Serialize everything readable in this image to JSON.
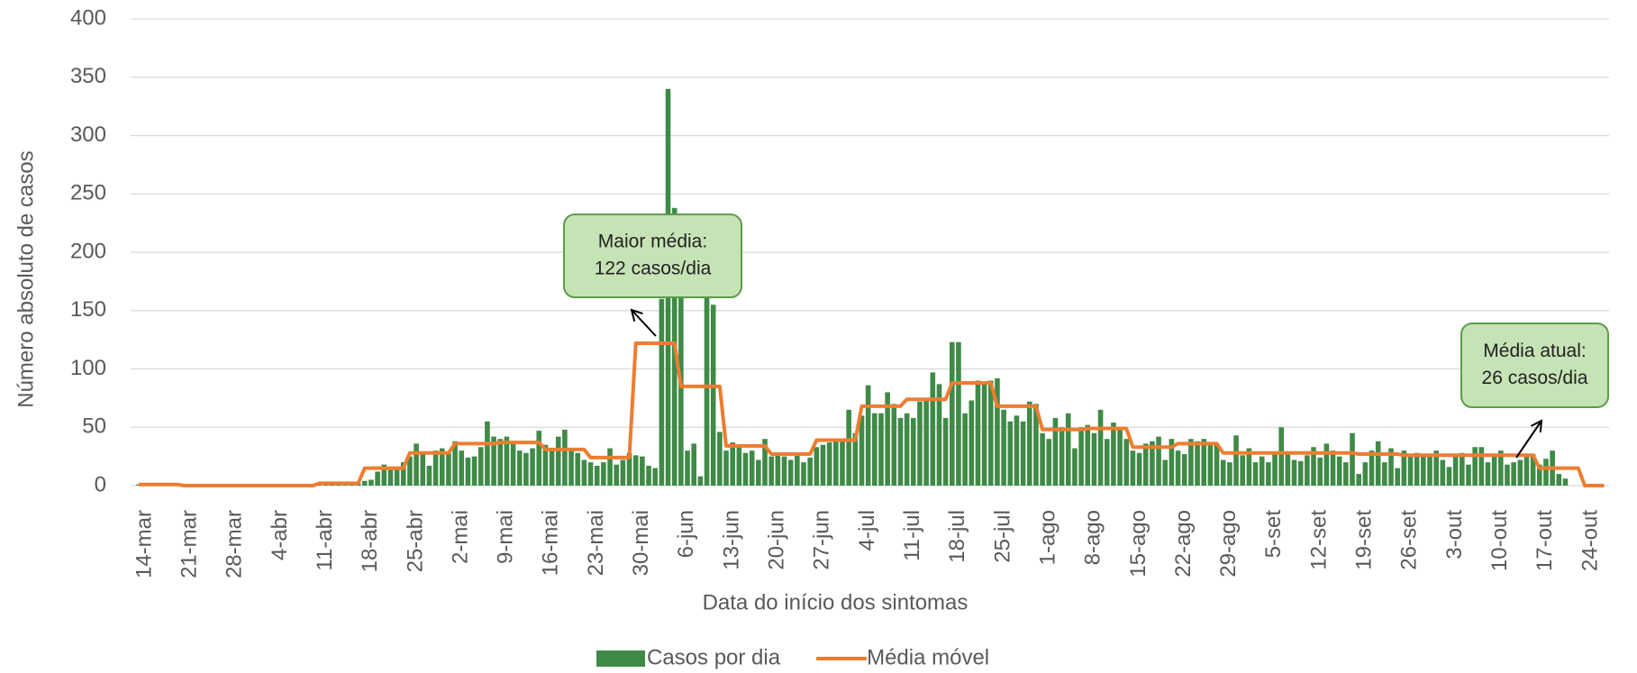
{
  "chart_data": {
    "type": "bar",
    "xlabel": "Data do início dos sintomas",
    "ylabel": "Número absoluto de casos",
    "ylim": [
      0,
      400
    ],
    "yticks": [
      0,
      50,
      100,
      150,
      200,
      250,
      300,
      350,
      400
    ],
    "grid": true,
    "legend": "bottom",
    "categories": [
      "14-mar",
      null,
      null,
      null,
      null,
      null,
      null,
      "21-mar",
      null,
      null,
      null,
      null,
      null,
      null,
      "28-mar",
      null,
      null,
      null,
      null,
      null,
      null,
      "4-abr",
      null,
      null,
      null,
      null,
      null,
      null,
      "11-abr",
      null,
      null,
      null,
      null,
      null,
      null,
      "18-abr",
      null,
      null,
      null,
      null,
      null,
      null,
      "25-abr",
      null,
      null,
      null,
      null,
      null,
      null,
      "2-mai",
      null,
      null,
      null,
      null,
      null,
      null,
      "9-mai",
      null,
      null,
      null,
      null,
      null,
      null,
      "16-mai",
      null,
      null,
      null,
      null,
      null,
      null,
      "23-mai",
      null,
      null,
      null,
      null,
      null,
      null,
      "30-mai",
      null,
      null,
      null,
      null,
      null,
      null,
      "6-jun",
      null,
      null,
      null,
      null,
      null,
      null,
      "13-jun",
      null,
      null,
      null,
      null,
      null,
      null,
      "20-jun",
      null,
      null,
      null,
      null,
      null,
      null,
      "27-jun",
      null,
      null,
      null,
      null,
      null,
      null,
      "4-jul",
      null,
      null,
      null,
      null,
      null,
      null,
      "11-jul",
      null,
      null,
      null,
      null,
      null,
      null,
      "18-jul",
      null,
      null,
      null,
      null,
      null,
      null,
      "25-jul",
      null,
      null,
      null,
      null,
      null,
      null,
      "1-ago",
      null,
      null,
      null,
      null,
      null,
      null,
      "8-ago",
      null,
      null,
      null,
      null,
      null,
      null,
      "15-ago",
      null,
      null,
      null,
      null,
      null,
      null,
      "22-ago",
      null,
      null,
      null,
      null,
      null,
      null,
      "29-ago",
      null,
      null,
      null,
      null,
      null,
      null,
      "5-set",
      null,
      null,
      null,
      null,
      null,
      null,
      "12-set",
      null,
      null,
      null,
      null,
      null,
      null,
      "19-set",
      null,
      null,
      null,
      null,
      null,
      null,
      "26-set",
      null,
      null,
      null,
      null,
      null,
      null,
      "3-out",
      null,
      null,
      null,
      null,
      null,
      null,
      "10-out",
      null,
      null,
      null,
      null,
      null,
      null,
      "17-out",
      null,
      null,
      null,
      null,
      null,
      null,
      "24-out",
      null,
      null,
      null
    ],
    "series": [
      {
        "name": "Casos por dia",
        "type": "bar",
        "color": "#3f8a47",
        "values": [
          1,
          1,
          1,
          1,
          1,
          1,
          1,
          0,
          0,
          0,
          0,
          0,
          0,
          0,
          0,
          0,
          0,
          0,
          0,
          0,
          0,
          0,
          0,
          0,
          0,
          0,
          0,
          0,
          2,
          2,
          2,
          2,
          2,
          2,
          2,
          4,
          5,
          12,
          18,
          16,
          15,
          20,
          25,
          36,
          28,
          17,
          30,
          32,
          28,
          38,
          30,
          24,
          25,
          33,
          55,
          42,
          40,
          42,
          36,
          30,
          28,
          32,
          47,
          35,
          30,
          42,
          48,
          30,
          28,
          22,
          20,
          17,
          20,
          32,
          18,
          22,
          28,
          26,
          25,
          17,
          15,
          160,
          340,
          238,
          170,
          30,
          36,
          8,
          190,
          155,
          46,
          30,
          37,
          33,
          28,
          30,
          22,
          40,
          25,
          28,
          25,
          22,
          26,
          20,
          24,
          33,
          35,
          37,
          40,
          38,
          65,
          45,
          60,
          86,
          62,
          62,
          80,
          70,
          58,
          62,
          58,
          72,
          75,
          97,
          87,
          58,
          123,
          123,
          62,
          73,
          90,
          88,
          90,
          92,
          65,
          55,
          60,
          55,
          72,
          70,
          45,
          40,
          58,
          50,
          62,
          32,
          50,
          52,
          45,
          65,
          40,
          54,
          48,
          40,
          30,
          28,
          36,
          38,
          42,
          22,
          40,
          30,
          27,
          40,
          38,
          40,
          37,
          36,
          22,
          20,
          43,
          26,
          32,
          20,
          25,
          20,
          27,
          50,
          27,
          22,
          21,
          26,
          33,
          24,
          36,
          30,
          25,
          20,
          45,
          10,
          20,
          30,
          38,
          20,
          32,
          15,
          30,
          25,
          28,
          27,
          26,
          30,
          22,
          16,
          25,
          28,
          18,
          33,
          33,
          20,
          25,
          30,
          18,
          20,
          22,
          25,
          27,
          18,
          23,
          30,
          10,
          6,
          0,
          0,
          0,
          0,
          0,
          0
        ]
      },
      {
        "name": "Média móvel",
        "type": "line",
        "color": "#ed7d31",
        "values": [
          1,
          1,
          1,
          1,
          1,
          1,
          1,
          0,
          0,
          0,
          0,
          0,
          0,
          0,
          0,
          0,
          0,
          0,
          0,
          0,
          0,
          0,
          0,
          0,
          0,
          0,
          0,
          0,
          2,
          2,
          2,
          2,
          2,
          2,
          2,
          15,
          15,
          15,
          15,
          15,
          15,
          15,
          28,
          28,
          28,
          28,
          28,
          28,
          28,
          36,
          36,
          36,
          36,
          36,
          36,
          36,
          37,
          37,
          37,
          37,
          37,
          37,
          37,
          31,
          31,
          31,
          31,
          31,
          31,
          31,
          24,
          24,
          24,
          24,
          24,
          24,
          24,
          122,
          122,
          122,
          122,
          122,
          122,
          122,
          85,
          85,
          85,
          85,
          85,
          85,
          85,
          34,
          34,
          34,
          34,
          34,
          34,
          34,
          27,
          27,
          27,
          27,
          27,
          27,
          27,
          39,
          39,
          39,
          39,
          39,
          39,
          39,
          68,
          68,
          68,
          68,
          68,
          68,
          68,
          74,
          74,
          74,
          74,
          74,
          74,
          74,
          88,
          88,
          88,
          88,
          88,
          88,
          88,
          68,
          68,
          68,
          68,
          68,
          68,
          68,
          48,
          48,
          48,
          48,
          48,
          48,
          48,
          49,
          49,
          49,
          49,
          49,
          49,
          49,
          33,
          33,
          33,
          33,
          33,
          33,
          33,
          36,
          36,
          36,
          36,
          36,
          36,
          36,
          28,
          28,
          28,
          28,
          28,
          28,
          28,
          28,
          28,
          28,
          28,
          28,
          28,
          28,
          28,
          28,
          28,
          28,
          28,
          28,
          28,
          27,
          27,
          27,
          27,
          27,
          27,
          27,
          26,
          26,
          26,
          26,
          26,
          26,
          26,
          26,
          26,
          26,
          26,
          26,
          26,
          26,
          26,
          26,
          26,
          26,
          26,
          26,
          26,
          15,
          15,
          15,
          15,
          15,
          15,
          15,
          0,
          0,
          0,
          0
        ]
      }
    ],
    "annotations": [
      {
        "lines": [
          "Maior média:",
          "122 casos/dia"
        ]
      },
      {
        "lines": [
          "Média atual:",
          "26 casos/dia"
        ]
      }
    ]
  }
}
